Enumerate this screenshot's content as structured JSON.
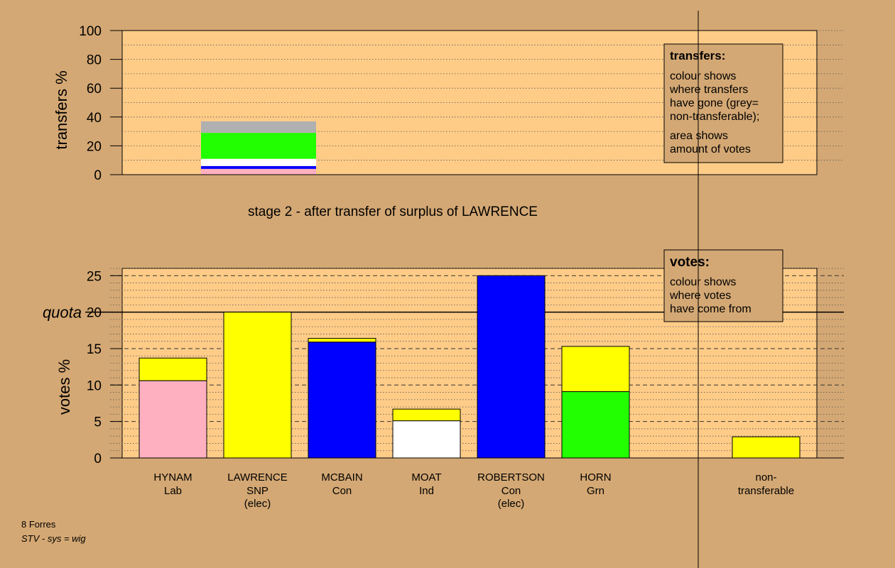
{
  "colors": {
    "background": "#d4a874",
    "plot_bg": "#ffcc88",
    "Lab": "#ffb0c0",
    "SNP": "#ffff00",
    "Con": "#0000ff",
    "Ind": "#ffffff",
    "Grn": "#22ff00",
    "nontransferable": "#b0b0b0"
  },
  "transfers_legend": {
    "title": "transfers:",
    "lines1": [
      "colour shows",
      "where transfers",
      "have gone (grey=",
      "non-transferable);"
    ],
    "lines2": [
      "area shows",
      "amount of votes"
    ]
  },
  "votes_legend": {
    "title": "votes:",
    "lines": [
      "colour shows",
      "where votes",
      "have come from"
    ]
  },
  "stage_title": "stage 2 - after transfer of surplus of LAWRENCE",
  "footer": {
    "line1": "8 Forres",
    "line2": "STV - sys = wig"
  },
  "chart_data": [
    {
      "type": "bar",
      "name": "transfers",
      "ylabel": "transfers %",
      "ylim": [
        0,
        100
      ],
      "yticks": [
        "0",
        "20",
        "40",
        "60",
        "80",
        "100"
      ],
      "stacked_segments": [
        {
          "party": "Lab",
          "value": 4
        },
        {
          "party": "Con",
          "value": 2
        },
        {
          "party": "Ind",
          "value": 5
        },
        {
          "party": "Grn",
          "value": 18
        },
        {
          "party": "nontransferable",
          "value": 8
        }
      ]
    },
    {
      "type": "bar",
      "name": "votes",
      "ylabel": "votes %",
      "ylim": [
        0,
        26
      ],
      "yticks": [
        "0",
        "5",
        "10",
        "15",
        "20",
        "25"
      ],
      "quota": {
        "label": "quota",
        "value": 20
      },
      "candidates": [
        {
          "name": "HYNAM",
          "party": "Lab",
          "note": "",
          "segments": [
            {
              "party": "Lab",
              "value": 10.6
            },
            {
              "party": "SNP",
              "value": 3.1
            }
          ]
        },
        {
          "name": "LAWRENCE",
          "party": "SNP",
          "note": "(elec)",
          "segments": [
            {
              "party": "SNP",
              "value": 20
            }
          ]
        },
        {
          "name": "MCBAIN",
          "party": "Con",
          "note": "",
          "segments": [
            {
              "party": "Con",
              "value": 15.9
            },
            {
              "party": "SNP",
              "value": 0.5
            }
          ]
        },
        {
          "name": "MOAT",
          "party": "Ind",
          "note": "",
          "segments": [
            {
              "party": "Ind",
              "value": 5.1
            },
            {
              "party": "SNP",
              "value": 1.6
            }
          ]
        },
        {
          "name": "ROBERTSON",
          "party": "Con",
          "note": "(elec)",
          "segments": [
            {
              "party": "Con",
              "value": 25
            }
          ]
        },
        {
          "name": "HORN",
          "party": "Grn",
          "note": "",
          "segments": [
            {
              "party": "Grn",
              "value": 9.1
            },
            {
              "party": "SNP",
              "value": 6.2
            }
          ]
        }
      ],
      "nontransferable": {
        "label1": "non-",
        "label2": "transferable",
        "segments": [
          {
            "party": "SNP",
            "value": 2.9
          }
        ]
      }
    }
  ]
}
